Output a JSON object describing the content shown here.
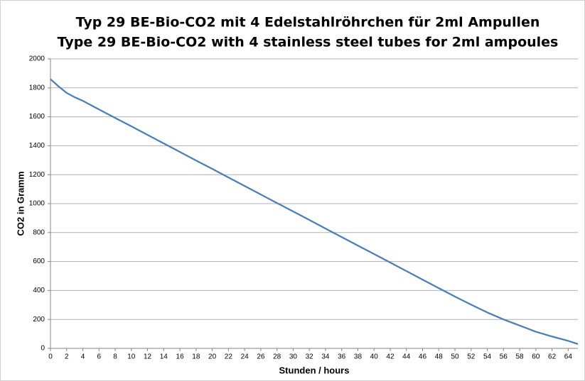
{
  "chart_data": {
    "type": "line",
    "title": "Typ 29 BE-Bio-CO2 mit 4 Edelstahlröhrchen für 2ml Ampullen",
    "subtitle": "Type 29 BE-Bio-CO2 with 4 stainless steel tubes for 2ml ampoules",
    "x_label": "Stunden / hours",
    "y_label": "CO2 in Gramm",
    "x": [
      0,
      1,
      2,
      3,
      4,
      6,
      8,
      10,
      12,
      14,
      16,
      18,
      20,
      22,
      24,
      26,
      28,
      30,
      32,
      34,
      36,
      38,
      40,
      42,
      44,
      46,
      48,
      50,
      52,
      54,
      56,
      58,
      60,
      62,
      64,
      65.2
    ],
    "values": [
      1860,
      1810,
      1765,
      1735,
      1710,
      1651,
      1592,
      1534,
      1475,
      1416,
      1357,
      1298,
      1240,
      1181,
      1122,
      1063,
      1004,
      946,
      887,
      828,
      769,
      710,
      652,
      593,
      534,
      475,
      416,
      358,
      302,
      248,
      200,
      158,
      115,
      82,
      52,
      30
    ],
    "color": "#4a7ebb",
    "xlim": [
      0,
      65.2
    ],
    "xticks": [
      0,
      2,
      4,
      6,
      8,
      10,
      12,
      14,
      16,
      18,
      20,
      22,
      24,
      26,
      28,
      30,
      32,
      34,
      36,
      38,
      40,
      42,
      44,
      46,
      48,
      50,
      52,
      54,
      56,
      58,
      60,
      62,
      64
    ],
    "ylim": [
      0,
      2000
    ],
    "yticks": [
      0,
      200,
      400,
      600,
      800,
      1000,
      1200,
      1400,
      1600,
      1800,
      2000
    ],
    "grid": true
  }
}
